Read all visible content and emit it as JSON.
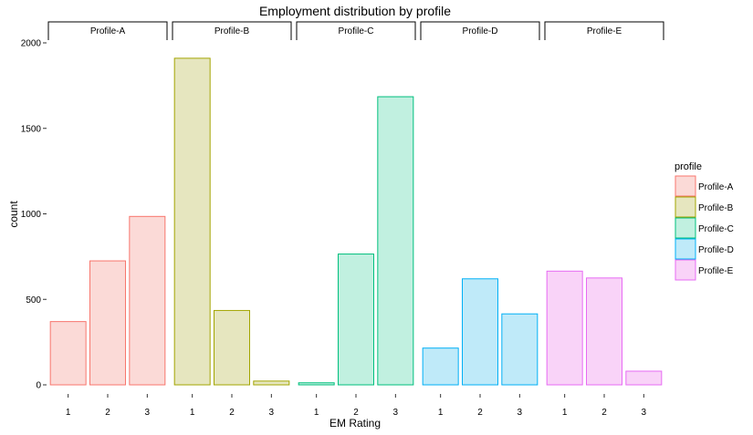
{
  "chart_data": {
    "type": "bar",
    "title": "Employment distribution by profile",
    "xlabel": "EM Rating",
    "ylabel": "count",
    "categories": [
      "1",
      "2",
      "3"
    ],
    "y_ticks": [
      0,
      500,
      1000,
      1500,
      2000
    ],
    "ylim": [
      0,
      2000
    ],
    "grid": false,
    "legend": {
      "title": "profile",
      "position": "right",
      "entries": [
        "Profile-A",
        "Profile-B",
        "Profile-C",
        "Profile-D",
        "Profile-E"
      ]
    },
    "facets": [
      {
        "name": "Profile-A",
        "values": [
          370,
          725,
          985
        ],
        "fill": "#fbdad7",
        "stroke": "#f8766d"
      },
      {
        "name": "Profile-B",
        "values": [
          1910,
          435,
          22
        ],
        "fill": "#e6e6bf",
        "stroke": "#a3a500"
      },
      {
        "name": "Profile-C",
        "values": [
          12,
          765,
          1685
        ],
        "fill": "#c1f0e0",
        "stroke": "#00bf7d"
      },
      {
        "name": "Profile-D",
        "values": [
          215,
          620,
          415
        ],
        "fill": "#bfeaf9",
        "stroke": "#00b0f6"
      },
      {
        "name": "Profile-E",
        "values": [
          665,
          625,
          80
        ],
        "fill": "#f9d3f8",
        "stroke": "#e76bf3"
      }
    ]
  }
}
